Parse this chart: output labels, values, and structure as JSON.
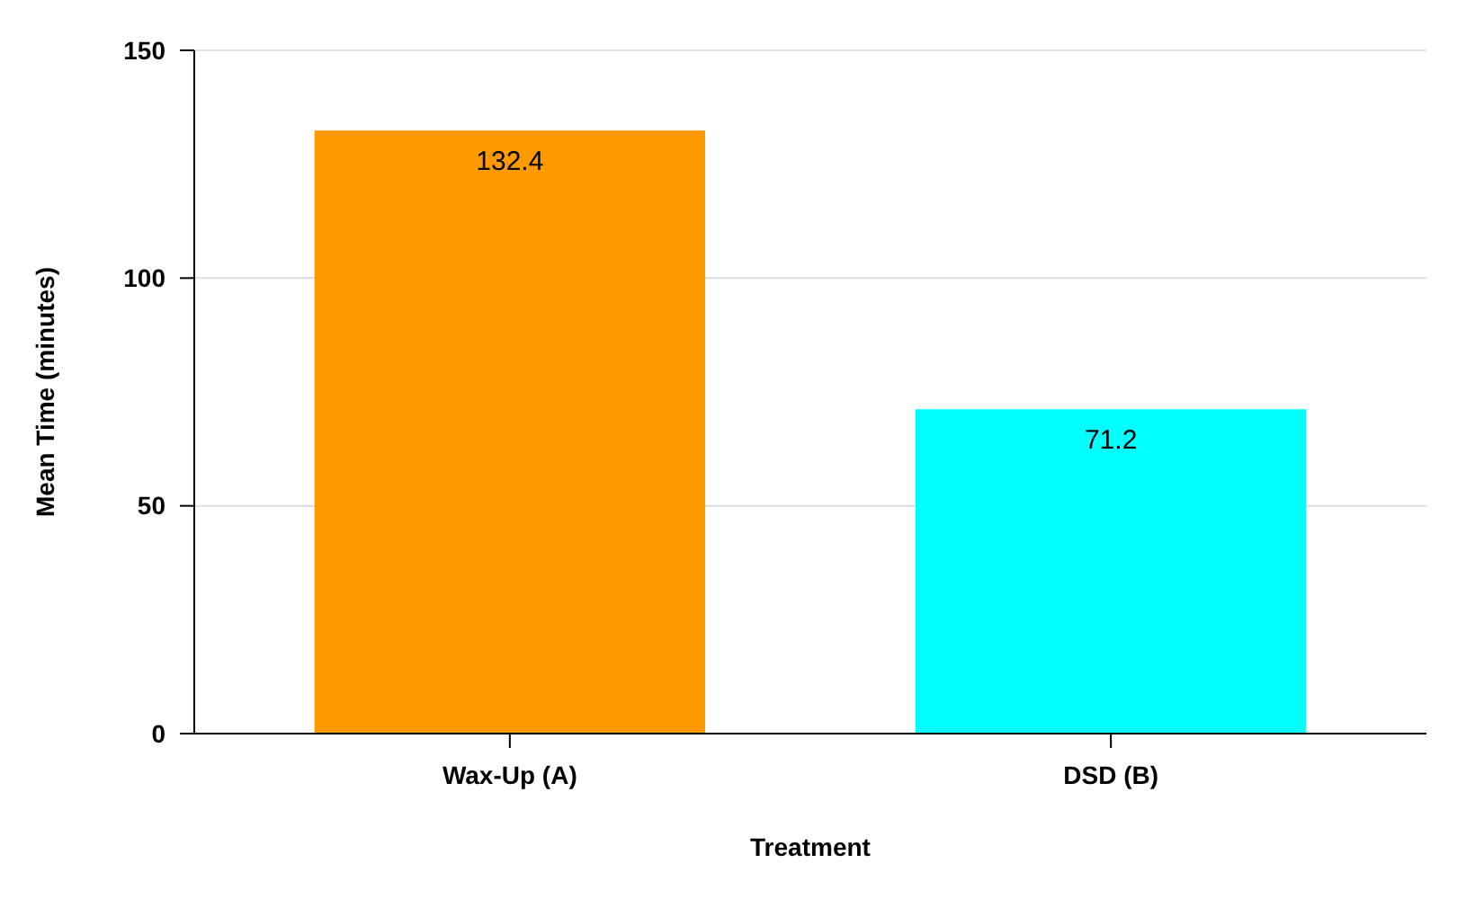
{
  "chart_data": {
    "type": "bar",
    "xlabel": "Treatment",
    "ylabel": "Mean Time (minutes)",
    "categories": [
      "Wax-Up (A)",
      "DSD (B)"
    ],
    "values": [
      132.4,
      71.2
    ],
    "colors": [
      "#ff9900",
      "#00ffff"
    ],
    "ylim": [
      0,
      150
    ],
    "yticks": [
      0,
      50,
      100,
      150
    ],
    "grid": "y",
    "data_labels": true
  }
}
